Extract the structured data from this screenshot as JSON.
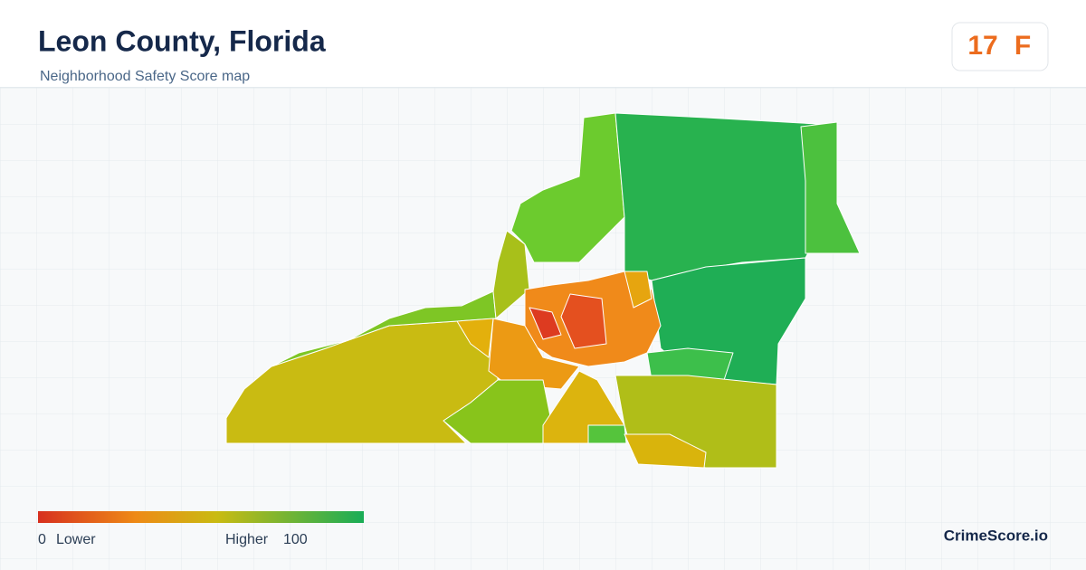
{
  "header": {
    "title": "Leon County, Florida",
    "subtitle": "Neighborhood Safety Score map"
  },
  "badge": {
    "score": "17",
    "grade": "F"
  },
  "legend": {
    "min": "0",
    "min_label": "Lower",
    "max_label": "Higher",
    "max": "100"
  },
  "brand": "CrimeScore.io"
}
